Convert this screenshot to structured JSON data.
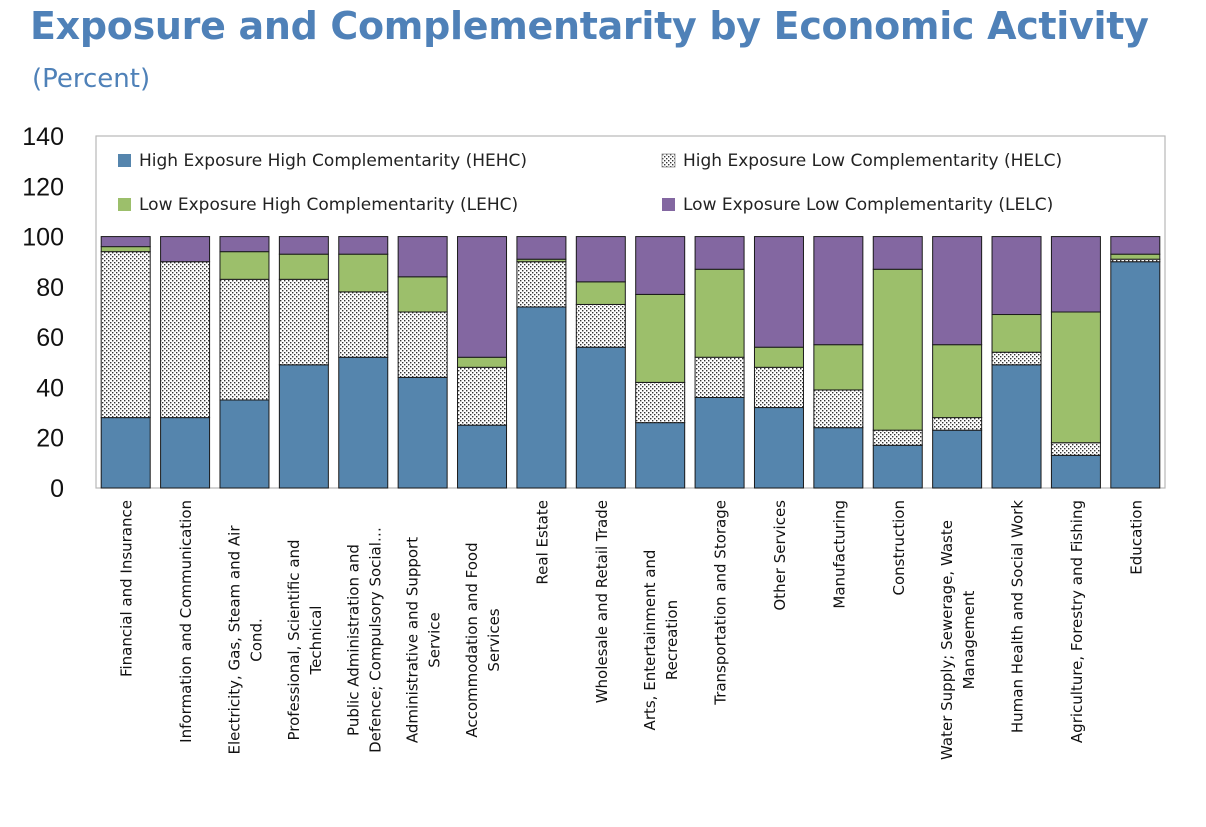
{
  "title": "Exposure and Complementarity by Economic Activity",
  "subtitle": "(Percent)",
  "chart_data": {
    "type": "bar",
    "stacked": true,
    "ylim": [
      0,
      140
    ],
    "yticks": [
      0,
      20,
      40,
      60,
      80,
      100,
      120,
      140
    ],
    "grid": false,
    "legend_position": "top",
    "categories": [
      [
        "Financial and Insurance"
      ],
      [
        "Information and Communication"
      ],
      [
        "Electricity, Gas, Steam and Air",
        "Cond."
      ],
      [
        "Professional, Scientific and",
        "Technical"
      ],
      [
        "Public Administration and",
        "Defence; Compulsory Social…"
      ],
      [
        "Administrative and Support",
        "Service"
      ],
      [
        "Accommodation and Food",
        "Services"
      ],
      [
        "Real Estate"
      ],
      [
        "Wholesale and Retail Trade"
      ],
      [
        "Arts, Entertainment and",
        "Recreation"
      ],
      [
        "Transportation and Storage"
      ],
      [
        "Other Services"
      ],
      [
        "Manufacturing"
      ],
      [
        "Construction"
      ],
      [
        "Water Supply; Sewerage, Waste",
        "Management"
      ],
      [
        "Human Health and Social Work"
      ],
      [
        "Agriculture, Forestry and Fishing"
      ],
      [
        "Education"
      ]
    ],
    "series": [
      {
        "name": "High Exposure High Complementarity (HEHC)",
        "color": "#5585ad",
        "pattern": "solid",
        "values": [
          28,
          28,
          35,
          49,
          52,
          44,
          25,
          72,
          56,
          26,
          36,
          32,
          24,
          17,
          23,
          49,
          13,
          90
        ]
      },
      {
        "name": "High Exposure Low Complementarity (HELC)",
        "color": "#ffffff",
        "pattern": "dotted",
        "values": [
          66,
          62,
          48,
          34,
          26,
          26,
          23,
          18,
          17,
          16,
          16,
          16,
          15,
          6,
          5,
          5,
          5,
          1
        ]
      },
      {
        "name": "Low Exposure High Complementarity (LEHC)",
        "color": "#9cbf6b",
        "pattern": "solid",
        "values": [
          2,
          0,
          11,
          10,
          15,
          14,
          4,
          1,
          9,
          35,
          35,
          8,
          18,
          64,
          29,
          15,
          52,
          2
        ]
      },
      {
        "name": "Low Exposure Low Complementarity (LELC)",
        "color": "#8367a1",
        "pattern": "solid",
        "values": [
          4,
          10,
          6,
          7,
          7,
          16,
          48,
          9,
          18,
          23,
          13,
          44,
          43,
          13,
          43,
          31,
          30,
          7
        ]
      }
    ]
  }
}
